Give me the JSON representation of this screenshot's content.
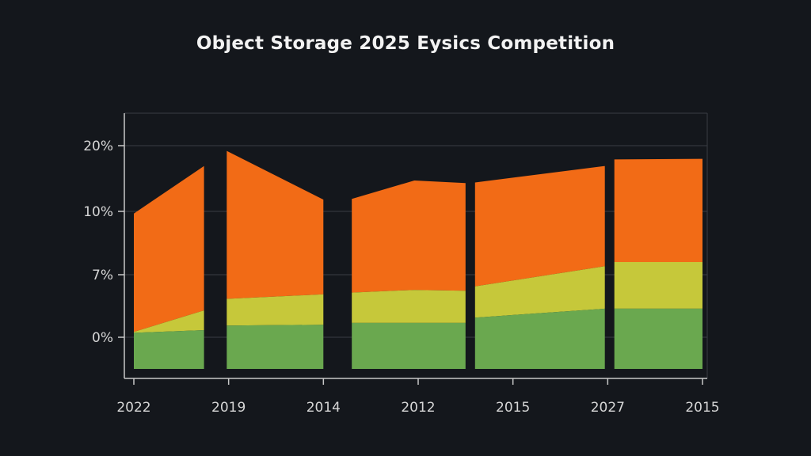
{
  "chart_data": {
    "type": "area",
    "title": "Object Storage 2025 Eysics Competition",
    "xlabel": "",
    "ylabel": "",
    "y_tick_labels": [
      "20%",
      "10%",
      "7%",
      "0%"
    ],
    "x_tick_labels": [
      "2022",
      "2019",
      "2014",
      "2012",
      "2015",
      "2027",
      "2015"
    ],
    "grid": true,
    "legend": "none",
    "colors": {
      "background": "#14171c",
      "grid": "#3a3d44",
      "axis": "#c8c8c8",
      "green": "#6aa84f",
      "yellow": "#c6c83a",
      "orange": "#f26b16"
    },
    "panels": [
      {
        "points": [
          {
            "x": 0.0,
            "green": -0.5,
            "yellow": 0.6,
            "total": 9.9
          },
          {
            "x": 0.74,
            "green": 0.8,
            "yellow": 3.0,
            "total": 16.9
          }
        ]
      },
      {
        "points": [
          {
            "x": 0.98,
            "green": 1.3,
            "yellow": 4.3,
            "total": 19.2
          },
          {
            "x": 2.0,
            "green": 1.4,
            "yellow": 4.8,
            "total": 11.8
          }
        ]
      },
      {
        "points": [
          {
            "x": 2.3,
            "green": 1.6,
            "yellow": 5.0,
            "total": 11.9
          },
          {
            "x": 2.96,
            "green": 1.6,
            "yellow": 5.3,
            "total": 14.7
          },
          {
            "x": 3.5,
            "green": 1.6,
            "yellow": 5.2,
            "total": 14.3
          }
        ]
      },
      {
        "points": [
          {
            "x": 3.6,
            "green": 2.2,
            "yellow": 5.7,
            "total": 14.4
          },
          {
            "x": 4.97,
            "green": 3.2,
            "yellow": 7.4,
            "total": 16.9
          }
        ]
      },
      {
        "points": [
          {
            "x": 5.07,
            "green": 3.2,
            "yellow": 7.6,
            "total": 17.9
          },
          {
            "x": 6.0,
            "green": 3.2,
            "yellow": 7.6,
            "total": 18.0
          }
        ]
      }
    ]
  }
}
